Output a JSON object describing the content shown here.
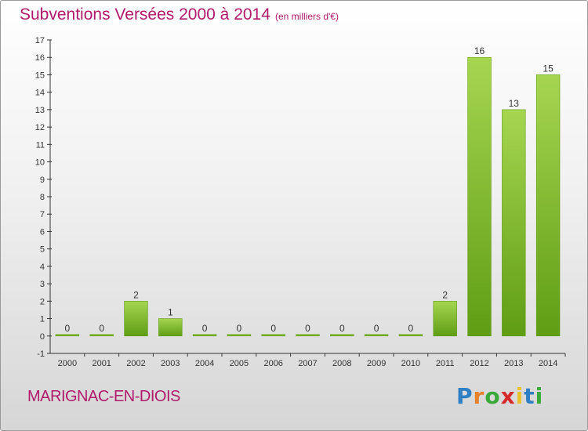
{
  "header": {
    "title": "Subventions Versées 2000 à 2014",
    "unit_note": "(en milliers d'€)"
  },
  "footer": {
    "commune": "MARIGNAC-EN-DIOIS"
  },
  "logo": {
    "letters": [
      "P",
      "r",
      "o",
      "x",
      "i",
      "t",
      "i"
    ],
    "colors": [
      "#2e7fc4",
      "#e8822a",
      "#3aa83a",
      "#d62a2a",
      "#e8c22a",
      "#2e7fc4",
      "#3aa83a"
    ]
  },
  "chart_data": {
    "type": "bar",
    "categories": [
      "2000",
      "2001",
      "2002",
      "2003",
      "2004",
      "2005",
      "2006",
      "2007",
      "2008",
      "2009",
      "2010",
      "2011",
      "2012",
      "2013",
      "2014"
    ],
    "values": [
      0,
      0,
      2,
      1,
      0,
      0,
      0,
      0,
      0,
      0,
      0,
      2,
      16,
      13,
      15
    ],
    "ylim": [
      -1,
      17
    ],
    "yticks": [
      -1,
      0,
      1,
      2,
      3,
      4,
      5,
      6,
      7,
      8,
      9,
      10,
      11,
      12,
      13,
      14,
      15,
      16,
      17
    ],
    "grid": false,
    "colors": {
      "bar_light": "#a6d650",
      "bar_dark": "#5f9d14",
      "axis": "#333333",
      "text": "#333333"
    }
  }
}
